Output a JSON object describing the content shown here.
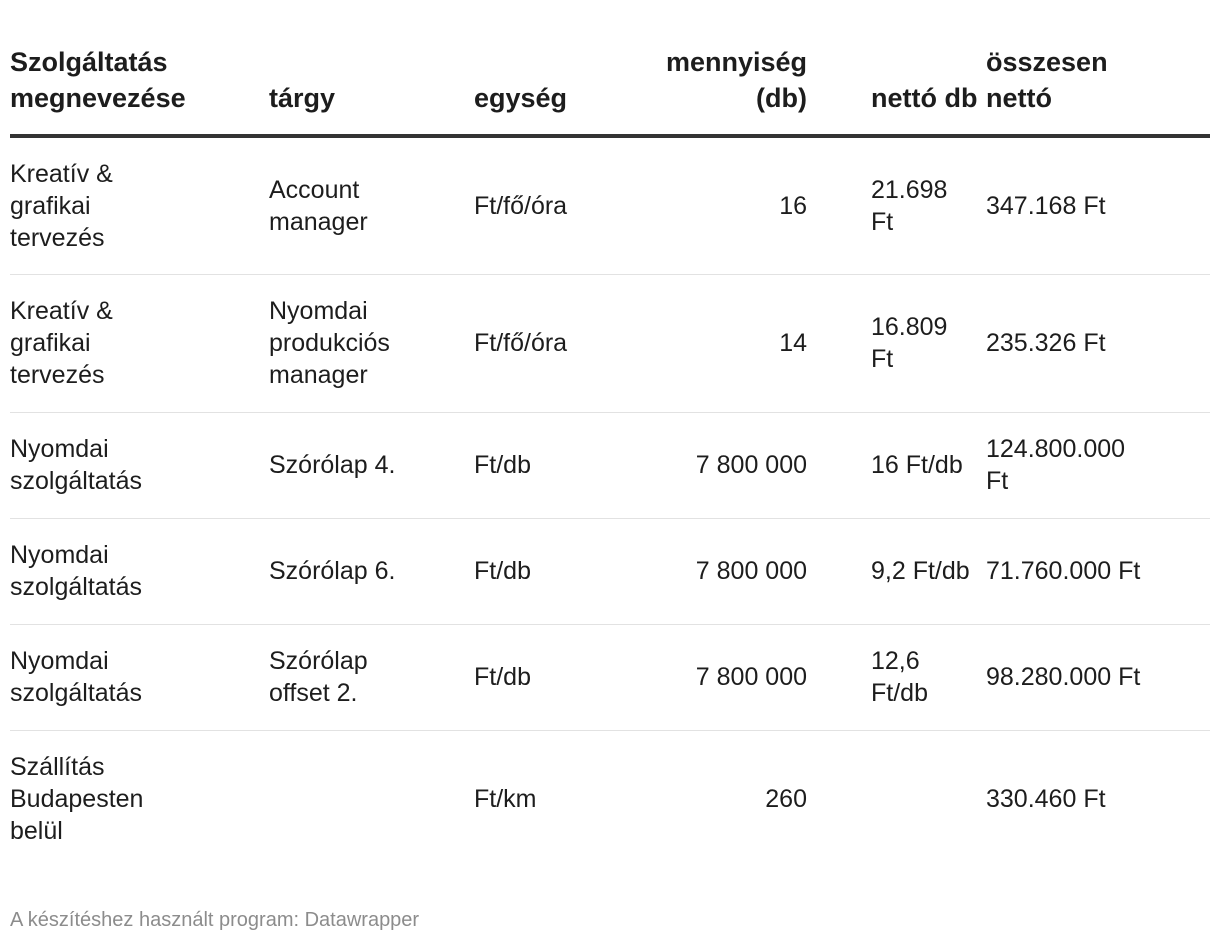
{
  "chart_data": {
    "type": "table",
    "columns": [
      "Szolgáltatás megnevezése",
      "tárgy",
      "egység",
      "mennyiség (db)",
      "nettó db",
      "összesen nettó"
    ],
    "rows": [
      [
        "Kreatív & grafikai tervezés",
        "Account manager",
        "Ft/fő/óra",
        "16",
        "21.698 Ft",
        "347.168 Ft"
      ],
      [
        "Kreatív & grafikai tervezés",
        "Nyomdai produkciós manager",
        "Ft/fő/óra",
        "14",
        "16.809 Ft",
        "235.326 Ft"
      ],
      [
        "Nyomdai szolgáltatás",
        "Szórólap 4.",
        "Ft/db",
        "7 800 000",
        "16 Ft/db",
        "124.800.000 Ft"
      ],
      [
        "Nyomdai szolgáltatás",
        "Szórólap 6.",
        "Ft/db",
        "7 800 000",
        "9,2 Ft/db",
        "71.760.000 Ft"
      ],
      [
        "Nyomdai szolgáltatás",
        "Szórólap offset 2.",
        "Ft/db",
        "7 800 000",
        "12,6 Ft/db",
        "98.280.000 Ft"
      ],
      [
        "Szállítás Budapesten belül",
        "",
        "Ft/km",
        "260",
        "",
        "330.460 Ft"
      ]
    ],
    "row_heights": null
  },
  "footer": {
    "credit": "A készítéshez használt program: Datawrapper"
  }
}
